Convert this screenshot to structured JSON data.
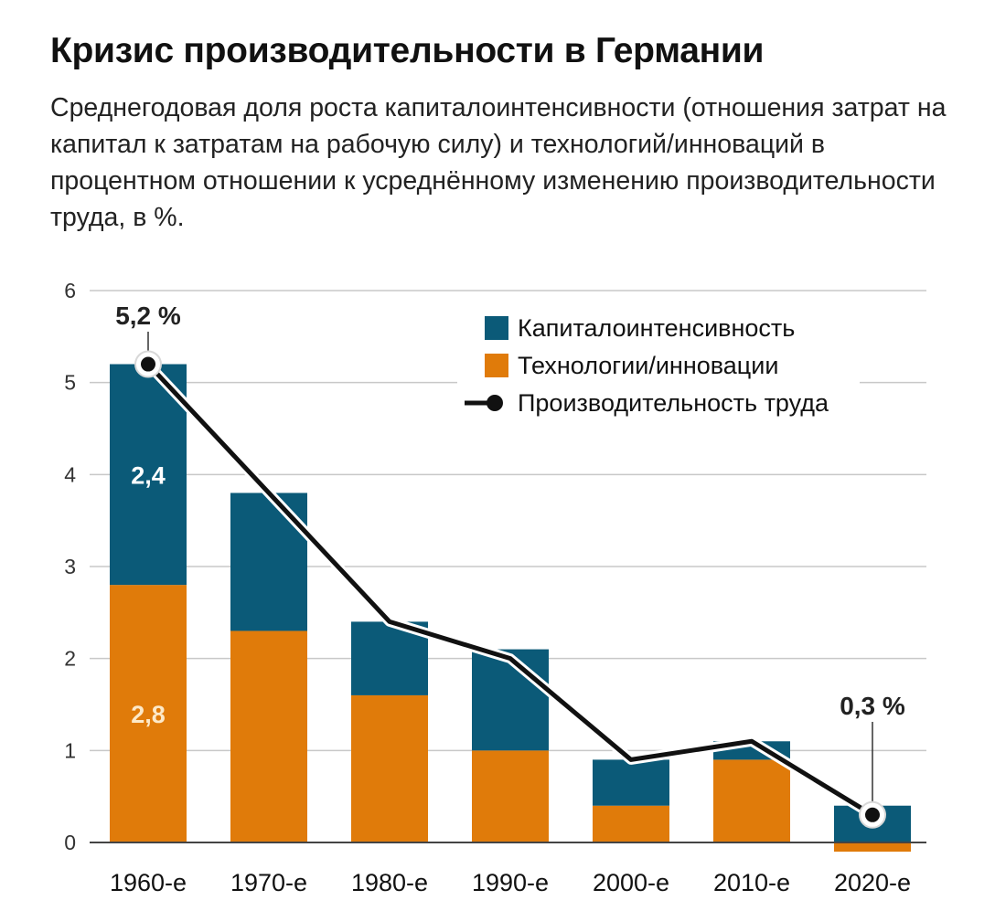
{
  "header": {
    "title": "Кризис производительности в Германии",
    "subtitle": "Среднегодовая доля роста капиталоинтенсивности (отношения затрат на капитал к затратам на рабочую силу) и технологий/инноваций в процентном отношении к усреднённому изменению производительности труда, в %."
  },
  "colors": {
    "capital": "#0b5a78",
    "tech": "#e07b0a",
    "line": "#111111",
    "grid": "#c8c8c8"
  },
  "chart_data": {
    "type": "bar",
    "stacked": true,
    "categories": [
      "1960-е",
      "1970-е",
      "1980-е",
      "1990-е",
      "2000-е",
      "2010-е",
      "2020-е"
    ],
    "series": [
      {
        "name": "Капиталоинтенсивность",
        "type": "bar",
        "values": [
          2.4,
          1.5,
          0.8,
          1.1,
          0.5,
          0.2,
          0.4
        ]
      },
      {
        "name": "Технологии/инновации",
        "type": "bar",
        "values": [
          2.8,
          2.3,
          1.6,
          1.0,
          0.4,
          0.9,
          -0.1
        ]
      },
      {
        "name": "Производительность труда",
        "type": "line",
        "values": [
          5.2,
          3.8,
          2.4,
          2.0,
          0.9,
          1.1,
          0.3
        ]
      }
    ],
    "ylim": [
      0,
      6
    ],
    "yticks": [
      0,
      1,
      2,
      3,
      4,
      5,
      6
    ],
    "data_labels": [
      {
        "series": "Капиталоинтенсивность",
        "category": "1960-е",
        "text": "2,4"
      },
      {
        "series": "Технологии/инновации",
        "category": "1960-е",
        "text": "2,8"
      }
    ],
    "annotations": [
      {
        "category": "1960-е",
        "text": "5,2 %"
      },
      {
        "category": "2020-е",
        "text": "0,3 %"
      }
    ],
    "grid": true,
    "legend_position": "top-right"
  }
}
